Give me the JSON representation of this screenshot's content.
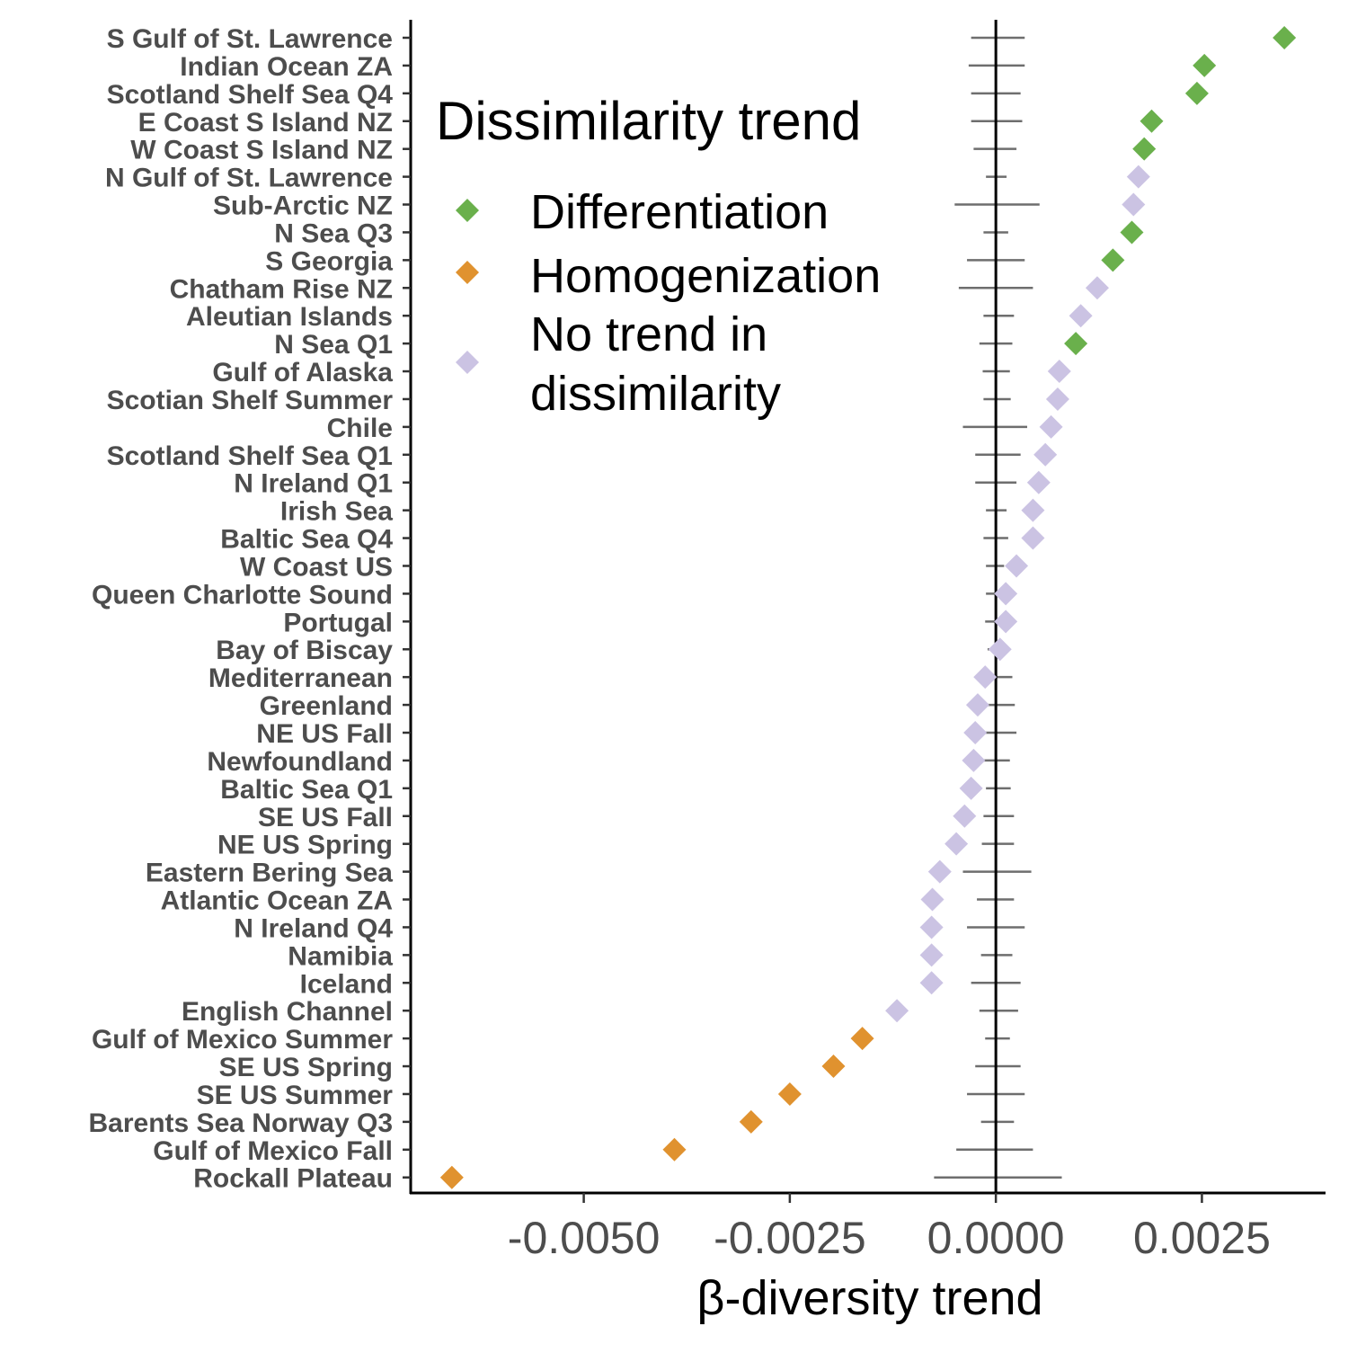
{
  "chart_data": {
    "type": "scatter",
    "title": "",
    "xlabel": "β-diversity trend",
    "ylabel": "",
    "xlim": [
      -0.0071,
      0.004
    ],
    "x_ticks": [
      -0.005,
      -0.0025,
      0.0,
      0.0025
    ],
    "x_tick_labels": [
      "-0.0050",
      "-0.0025",
      "0.0000",
      "0.0025"
    ],
    "grid": false,
    "legend": {
      "title": "Dissimilarity trend",
      "placement": "top-left",
      "entries": [
        {
          "label": "Differentiation",
          "color": "#6ab04c"
        },
        {
          "label": "Homogenization",
          "color": "#e0922f"
        },
        {
          "label": "No trend in dissimilarity",
          "label_lines": [
            "No trend in",
            "dissimilarity"
          ],
          "color": "#cbc3e3"
        }
      ]
    },
    "colors": {
      "Differentiation": "#6ab04c",
      "Homogenization": "#e0922f",
      "No trend in dissimilarity": "#cbc3e3"
    },
    "reference_line": 0,
    "points": [
      {
        "region": "S Gulf of St. Lawrence",
        "trend": 0.0035,
        "class": "Differentiation",
        "ci": [
          -0.0003,
          0.00035
        ]
      },
      {
        "region": "Indian Ocean ZA",
        "trend": 0.00253,
        "class": "Differentiation",
        "ci": [
          -0.00033,
          0.00035
        ]
      },
      {
        "region": "Scotland Shelf Sea Q4",
        "trend": 0.00244,
        "class": "Differentiation",
        "ci": [
          -0.0003,
          0.0003
        ]
      },
      {
        "region": "E Coast S Island NZ",
        "trend": 0.00189,
        "class": "Differentiation",
        "ci": [
          -0.0003,
          0.00032
        ]
      },
      {
        "region": "W Coast S Island NZ",
        "trend": 0.0018,
        "class": "Differentiation",
        "ci": [
          -0.00027,
          0.00025
        ]
      },
      {
        "region": "N Gulf of St. Lawrence",
        "trend": 0.00173,
        "class": "No trend in dissimilarity",
        "ci": [
          -0.00012,
          0.00013
        ]
      },
      {
        "region": "Sub-Arctic NZ",
        "trend": 0.00167,
        "class": "No trend in dissimilarity",
        "ci": [
          -0.0005,
          0.00053
        ]
      },
      {
        "region": "N Sea Q3",
        "trend": 0.00165,
        "class": "Differentiation",
        "ci": [
          -0.00015,
          0.00015
        ]
      },
      {
        "region": "S Georgia",
        "trend": 0.00142,
        "class": "Differentiation",
        "ci": [
          -0.00035,
          0.00035
        ]
      },
      {
        "region": "Chatham Rise NZ",
        "trend": 0.00123,
        "class": "No trend in dissimilarity",
        "ci": [
          -0.00045,
          0.00045
        ]
      },
      {
        "region": "Aleutian Islands",
        "trend": 0.00103,
        "class": "No trend in dissimilarity",
        "ci": [
          -0.00015,
          0.00022
        ]
      },
      {
        "region": "N Sea Q1",
        "trend": 0.00097,
        "class": "Differentiation",
        "ci": [
          -0.0002,
          0.0002
        ]
      },
      {
        "region": "Gulf of Alaska",
        "trend": 0.00077,
        "class": "No trend in dissimilarity",
        "ci": [
          -0.00016,
          0.00017
        ]
      },
      {
        "region": "Scotian Shelf Summer",
        "trend": 0.00075,
        "class": "No trend in dissimilarity",
        "ci": [
          -0.00015,
          0.00018
        ]
      },
      {
        "region": "Chile",
        "trend": 0.00067,
        "class": "No trend in dissimilarity",
        "ci": [
          -0.0004,
          0.00038
        ]
      },
      {
        "region": "Scotland Shelf Sea Q1",
        "trend": 0.0006,
        "class": "No trend in dissimilarity",
        "ci": [
          -0.00025,
          0.0003
        ]
      },
      {
        "region": "N Ireland Q1",
        "trend": 0.00052,
        "class": "No trend in dissimilarity",
        "ci": [
          -0.00025,
          0.00025
        ]
      },
      {
        "region": "Irish Sea",
        "trend": 0.00045,
        "class": "No trend in dissimilarity",
        "ci": [
          -0.00012,
          0.00013
        ]
      },
      {
        "region": "Baltic Sea Q4",
        "trend": 0.00045,
        "class": "No trend in dissimilarity",
        "ci": [
          -0.00015,
          0.00015
        ]
      },
      {
        "region": "W Coast US",
        "trend": 0.00025,
        "class": "No trend in dissimilarity",
        "ci": [
          -0.00012,
          0.0001
        ]
      },
      {
        "region": "Queen Charlotte Sound",
        "trend": 0.00012,
        "class": "No trend in dissimilarity",
        "ci": [
          -0.00012,
          0.00012
        ]
      },
      {
        "region": "Portugal",
        "trend": 0.00012,
        "class": "No trend in dissimilarity",
        "ci": [
          -0.00013,
          0.00012
        ]
      },
      {
        "region": "Bay of Biscay",
        "trend": 5e-05,
        "class": "No trend in dissimilarity",
        "ci": [
          -0.0001,
          0.0001
        ]
      },
      {
        "region": "Mediterranean",
        "trend": -0.00013,
        "class": "No trend in dissimilarity",
        "ci": [
          -0.00012,
          0.0002
        ]
      },
      {
        "region": "Greenland",
        "trend": -0.00022,
        "class": "No trend in dissimilarity",
        "ci": [
          -0.00015,
          0.00023
        ]
      },
      {
        "region": "NE US Fall",
        "trend": -0.00025,
        "class": "No trend in dissimilarity",
        "ci": [
          -0.0002,
          0.00025
        ]
      },
      {
        "region": "Newfoundland",
        "trend": -0.00027,
        "class": "No trend in dissimilarity",
        "ci": [
          -0.00015,
          0.00017
        ]
      },
      {
        "region": "Baltic Sea Q1",
        "trend": -0.0003,
        "class": "No trend in dissimilarity",
        "ci": [
          -0.00012,
          0.00018
        ]
      },
      {
        "region": "SE US Fall",
        "trend": -0.00038,
        "class": "No trend in dissimilarity",
        "ci": [
          -0.00015,
          0.00022
        ]
      },
      {
        "region": "NE US Spring",
        "trend": -0.00048,
        "class": "No trend in dissimilarity",
        "ci": [
          -0.00017,
          0.00022
        ]
      },
      {
        "region": "Eastern Bering Sea",
        "trend": -0.00068,
        "class": "No trend in dissimilarity",
        "ci": [
          -0.0004,
          0.00043
        ]
      },
      {
        "region": "Atlantic Ocean ZA",
        "trend": -0.00077,
        "class": "No trend in dissimilarity",
        "ci": [
          -0.00023,
          0.00022
        ]
      },
      {
        "region": "N Ireland Q4",
        "trend": -0.00078,
        "class": "No trend in dissimilarity",
        "ci": [
          -0.00035,
          0.00035
        ]
      },
      {
        "region": "Namibia",
        "trend": -0.00078,
        "class": "No trend in dissimilarity",
        "ci": [
          -0.00018,
          0.0002
        ]
      },
      {
        "region": "Iceland",
        "trend": -0.00078,
        "class": "No trend in dissimilarity",
        "ci": [
          -0.0003,
          0.0003
        ]
      },
      {
        "region": "English Channel",
        "trend": -0.0012,
        "class": "No trend in dissimilarity",
        "ci": [
          -0.0002,
          0.00027
        ]
      },
      {
        "region": "Gulf of Mexico Summer",
        "trend": -0.00162,
        "class": "Homogenization",
        "ci": [
          -0.00013,
          0.00017
        ]
      },
      {
        "region": "SE US Spring",
        "trend": -0.00197,
        "class": "Homogenization",
        "ci": [
          -0.00025,
          0.0003
        ]
      },
      {
        "region": "SE US Summer",
        "trend": -0.0025,
        "class": "Homogenization",
        "ci": [
          -0.00035,
          0.00035
        ]
      },
      {
        "region": "Barents Sea Norway Q3",
        "trend": -0.00297,
        "class": "Homogenization",
        "ci": [
          -0.00018,
          0.00022
        ]
      },
      {
        "region": "Gulf of Mexico Fall",
        "trend": -0.0039,
        "class": "Homogenization",
        "ci": [
          -0.00048,
          0.00045
        ]
      },
      {
        "region": "Rockall Plateau",
        "trend": -0.0066,
        "class": "Homogenization",
        "ci": [
          -0.00075,
          0.0008
        ]
      }
    ]
  }
}
